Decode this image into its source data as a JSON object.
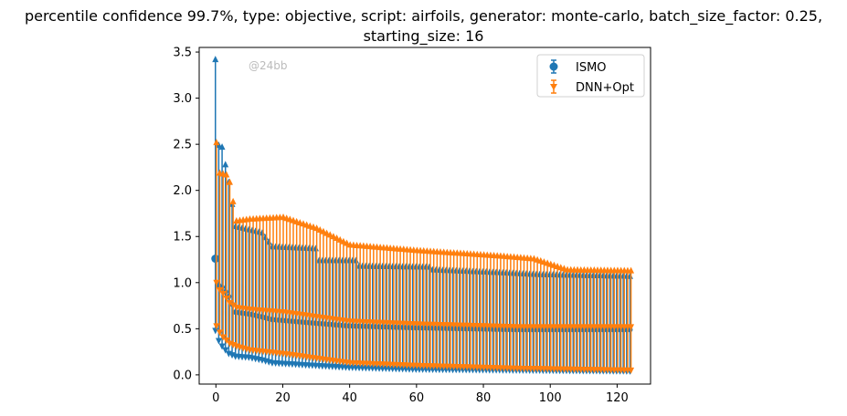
{
  "title_line1": "percentile confidence 99.7%, type: objective, script: airfoils, generator: monte-carlo, batch_size_factor: 0.25,",
  "title_line2": "starting_size: 16",
  "watermark": "@24bb",
  "chart_data": {
    "type": "errorbar",
    "xlim": [
      -5,
      130
    ],
    "ylim": [
      -0.1,
      3.55
    ],
    "x_ticks": [
      0,
      20,
      40,
      60,
      80,
      100,
      120
    ],
    "y_ticks": [
      0.0,
      0.5,
      1.0,
      1.5,
      2.0,
      2.5,
      3.0,
      3.5
    ],
    "x_tick_labels": [
      "0",
      "20",
      "40",
      "60",
      "80",
      "100",
      "120"
    ],
    "y_tick_labels": [
      "0.0",
      "0.5",
      "1.0",
      "1.5",
      "2.0",
      "2.5",
      "3.0",
      "3.5"
    ],
    "legend_position": "top-right",
    "grid": false,
    "series": [
      {
        "name": "ISMO",
        "color": "#1f77b4",
        "marker": "circle",
        "x_range": [
          0,
          124
        ],
        "keypoints_center": [
          [
            0,
            1.26
          ],
          [
            1,
            0.97
          ],
          [
            2,
            0.95
          ],
          [
            4,
            0.85
          ],
          [
            6,
            0.68
          ],
          [
            10,
            0.66
          ],
          [
            14,
            0.63
          ],
          [
            17,
            0.6
          ],
          [
            30,
            0.56
          ],
          [
            40,
            0.53
          ],
          [
            60,
            0.51
          ],
          [
            90,
            0.49
          ],
          [
            124,
            0.49
          ]
        ],
        "keypoints_lower": [
          [
            0,
            0.47
          ],
          [
            1,
            0.36
          ],
          [
            2,
            0.3
          ],
          [
            4,
            0.22
          ],
          [
            6,
            0.19
          ],
          [
            10,
            0.18
          ],
          [
            14,
            0.15
          ],
          [
            17,
            0.12
          ],
          [
            30,
            0.09
          ],
          [
            40,
            0.07
          ],
          [
            60,
            0.05
          ],
          [
            90,
            0.04
          ],
          [
            124,
            0.03
          ]
        ],
        "keypoints_upper": [
          [
            0,
            3.43
          ],
          [
            1,
            2.5
          ],
          [
            2,
            2.48
          ],
          [
            4,
            2.1
          ],
          [
            6,
            1.62
          ],
          [
            14,
            1.55
          ],
          [
            17,
            1.4
          ],
          [
            30,
            1.38
          ],
          [
            31,
            1.25
          ],
          [
            42,
            1.25
          ],
          [
            43,
            1.19
          ],
          [
            64,
            1.18
          ],
          [
            65,
            1.15
          ],
          [
            85,
            1.12
          ],
          [
            96,
            1.1
          ],
          [
            124,
            1.08
          ]
        ]
      },
      {
        "name": "DNN+Opt",
        "color": "#ff7f0e",
        "marker": "triangle-down",
        "x_range": [
          0,
          124
        ],
        "keypoints_center": [
          [
            0,
            1.0
          ],
          [
            1,
            0.92
          ],
          [
            2,
            0.88
          ],
          [
            4,
            0.78
          ],
          [
            6,
            0.73
          ],
          [
            10,
            0.71
          ],
          [
            20,
            0.68
          ],
          [
            30,
            0.63
          ],
          [
            40,
            0.58
          ],
          [
            60,
            0.55
          ],
          [
            90,
            0.52
          ],
          [
            124,
            0.52
          ]
        ],
        "keypoints_lower": [
          [
            0,
            0.52
          ],
          [
            1,
            0.45
          ],
          [
            2,
            0.4
          ],
          [
            4,
            0.33
          ],
          [
            6,
            0.3
          ],
          [
            10,
            0.26
          ],
          [
            20,
            0.22
          ],
          [
            30,
            0.17
          ],
          [
            40,
            0.12
          ],
          [
            60,
            0.09
          ],
          [
            90,
            0.06
          ],
          [
            124,
            0.04
          ]
        ],
        "keypoints_upper": [
          [
            0,
            2.53
          ],
          [
            1,
            2.2
          ],
          [
            3,
            2.18
          ],
          [
            4,
            2.1
          ],
          [
            6,
            1.68
          ],
          [
            10,
            1.7
          ],
          [
            20,
            1.72
          ],
          [
            30,
            1.6
          ],
          [
            40,
            1.42
          ],
          [
            60,
            1.36
          ],
          [
            85,
            1.3
          ],
          [
            95,
            1.27
          ],
          [
            105,
            1.15
          ],
          [
            124,
            1.14
          ]
        ]
      }
    ]
  }
}
